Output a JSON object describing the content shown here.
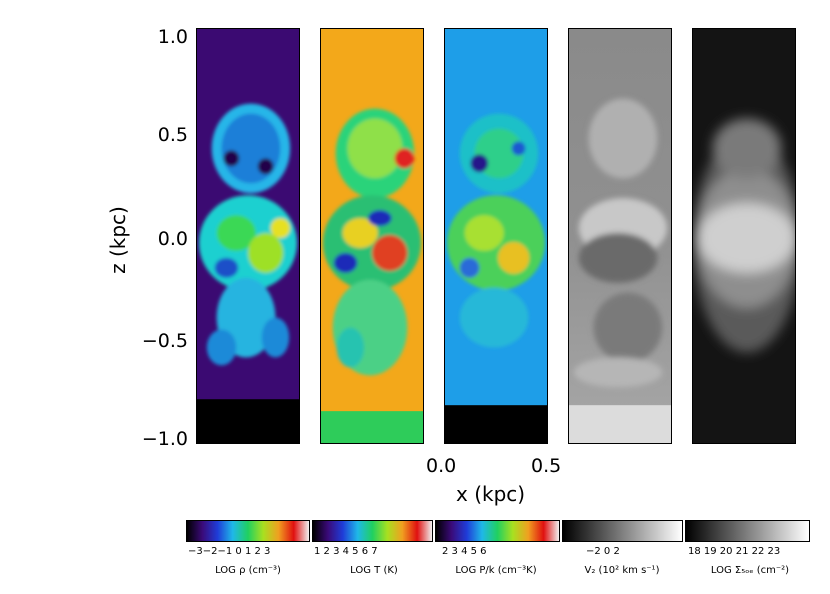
{
  "axes": {
    "y_label": "z (kpc)",
    "x_label": "x (kpc)",
    "y_ticks": [
      "1.0",
      "0.5",
      "0.0",
      "−0.5",
      "−1.0"
    ],
    "x_ticks": [
      "0.0",
      "0.5"
    ]
  },
  "panels": [
    {
      "name": "density",
      "colormap": "rainbow",
      "background": "#3a0a6e"
    },
    {
      "name": "temperature",
      "colormap": "rainbow",
      "background": "#f5a818"
    },
    {
      "name": "pressure",
      "colormap": "rainbow",
      "background": "#1e9ee8"
    },
    {
      "name": "velocity",
      "colormap": "gray",
      "background": "#9a9a9a"
    },
    {
      "name": "column-density",
      "colormap": "gray",
      "background": "#181818"
    }
  ],
  "colorbars": [
    {
      "ticks": "−3−2−1 0  1  2  3",
      "label": "LOG ρ (cm⁻³)"
    },
    {
      "ticks": "1  2  3  4  5  6  7",
      "label": "LOG T (K)"
    },
    {
      "ticks": "2   3   4   5   6",
      "label": "LOG P/k (cm⁻³K)"
    },
    {
      "ticks": "−2   0   2",
      "label": "V₂ (10² km s⁻¹)"
    },
    {
      "ticks": "18 19 20 21 22 23",
      "label": "LOG Σ₅ₒₑ (cm⁻²)"
    }
  ]
}
